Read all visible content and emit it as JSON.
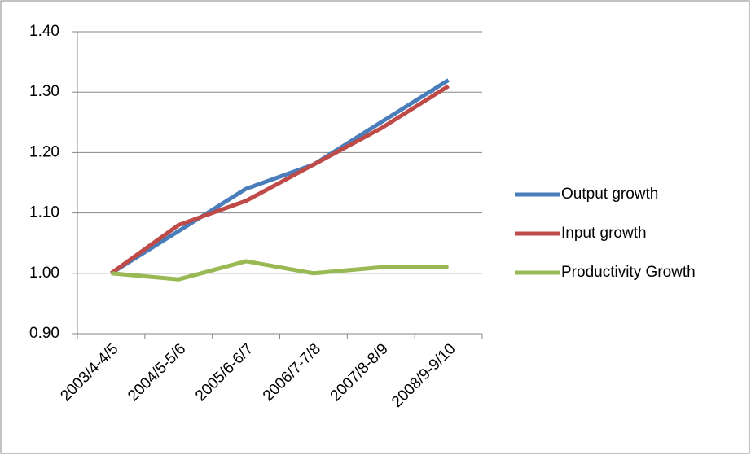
{
  "chart_data": {
    "type": "line",
    "categories": [
      "2003/4-4/5",
      "2004/5-5/6",
      "2005/6-6/7",
      "2006/7-7/8",
      "2007/8-8/9",
      "2008/9-9/10"
    ],
    "series": [
      {
        "name": "Output growth",
        "color": "#4a7ebb",
        "values": [
          1.0,
          1.07,
          1.14,
          1.18,
          1.25,
          1.32
        ]
      },
      {
        "name": "Input growth",
        "color": "#be4b48",
        "values": [
          1.0,
          1.08,
          1.12,
          1.18,
          1.24,
          1.31
        ]
      },
      {
        "name": "Productivity Growth",
        "color": "#98b954",
        "values": [
          1.0,
          0.99,
          1.02,
          1.0,
          1.01,
          1.01
        ]
      }
    ],
    "ylim": [
      0.9,
      1.4
    ],
    "yticks": [
      {
        "value": 0.9,
        "label": "0.90"
      },
      {
        "value": 1.0,
        "label": "1.00"
      },
      {
        "value": 1.1,
        "label": "1.10"
      },
      {
        "value": 1.2,
        "label": "1.20"
      },
      {
        "value": 1.3,
        "label": "1.30"
      },
      {
        "value": 1.4,
        "label": "1.40"
      }
    ],
    "grid": true,
    "legend": "right"
  }
}
